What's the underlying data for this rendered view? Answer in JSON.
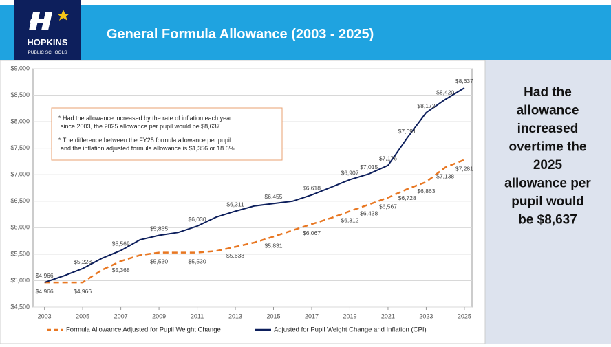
{
  "header": {
    "title": "General Formula Allowance (2003 - 2025)",
    "logo_name": "HOPKINS",
    "logo_sub": "PUBLIC SCHOOLS"
  },
  "side_note": [
    "Had the",
    "allowance",
    "increased",
    "overtime the",
    "2025",
    "allowance per",
    "pupil would",
    "be $8,637"
  ],
  "chart_data": {
    "type": "line",
    "x": [
      2003,
      2004,
      2005,
      2006,
      2007,
      2008,
      2009,
      2010,
      2011,
      2012,
      2013,
      2014,
      2015,
      2016,
      2017,
      2018,
      2019,
      2020,
      2021,
      2022,
      2023,
      2024,
      2025
    ],
    "series": [
      {
        "name": "Formula Allowance Adjusted for Pupil Weight Change",
        "color": "#e87722",
        "dashed": true,
        "values": [
          4966,
          4966,
          4966,
          5200,
          5368,
          5480,
          5530,
          5530,
          5530,
          5560,
          5638,
          5720,
          5831,
          5950,
          6067,
          6180,
          6312,
          6438,
          6567,
          6728,
          6863,
          7138,
          7281
        ],
        "value_labels": [
          "$4,966",
          null,
          "$4,966",
          null,
          "$5,368",
          null,
          "$5,530",
          null,
          "$5,530",
          null,
          "$5,638",
          null,
          "$5,831",
          null,
          "$6,067",
          null,
          "$6,312",
          "$6,438",
          "$6,567",
          "$6,728",
          "$6,863",
          "$7,138",
          "$7,281"
        ]
      },
      {
        "name": "Adjusted for Pupil Weight Change and Inflation (CPI)",
        "color": "#0d1f5c",
        "dashed": false,
        "values": [
          4966,
          5090,
          5228,
          5420,
          5569,
          5770,
          5855,
          5910,
          6030,
          6200,
          6311,
          6410,
          6455,
          6500,
          6618,
          6760,
          6907,
          7015,
          7176,
          7691,
          8172,
          8420,
          8637
        ],
        "value_labels": [
          "$4,966",
          null,
          "$5,228",
          null,
          "$5,569",
          null,
          "$5,855",
          null,
          "$6,030",
          null,
          "$6,311",
          null,
          "$6,455",
          null,
          "$6,618",
          null,
          "$6,907",
          "$7,015",
          "$7,176",
          "$7,691",
          "$8,172",
          "$8,420",
          "$8,637"
        ]
      }
    ],
    "xlim": [
      2002.4,
      2025.4
    ],
    "xticks": [
      2003,
      2005,
      2007,
      2009,
      2011,
      2013,
      2015,
      2017,
      2019,
      2021,
      2023,
      2025
    ],
    "ylim": [
      4500,
      9000
    ],
    "yticks": [
      {
        "value": 4500,
        "label": "$4,500"
      },
      {
        "value": 5000,
        "label": "$5,000"
      },
      {
        "value": 5500,
        "label": "$5,500"
      },
      {
        "value": 6000,
        "label": "$6,000"
      },
      {
        "value": 6500,
        "label": "$6,500"
      },
      {
        "value": 7000,
        "label": "$7,000"
      },
      {
        "value": 7500,
        "label": "$7,500"
      },
      {
        "value": 8000,
        "label": "$8,000"
      },
      {
        "value": 8500,
        "label": "$8,500"
      },
      {
        "value": 9000,
        "label": "$9,000"
      }
    ],
    "grid": true,
    "annotations": [
      "* Had the allowance increased by the rate of inflation each year",
      "since 2003, the 2025 allowance per pupil would be $8,637",
      "* The difference between the FY25 formula allowance per pupil",
      "and the inflation adjusted formula allowance is $1,356 or 18.6%"
    ]
  }
}
